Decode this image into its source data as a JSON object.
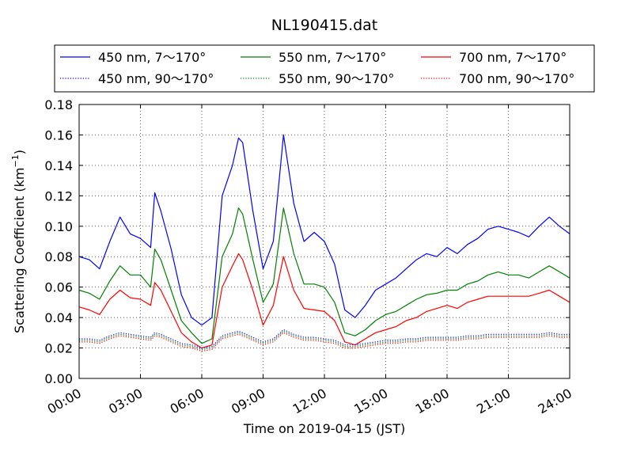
{
  "chart_data": {
    "type": "line",
    "title": "NL190415.dat",
    "xlabel": "Time on 2019-04-15 (JST)",
    "ylabel_main": "Scattering Coefficient (km",
    "ylabel_exp": "−1",
    "ylabel_close": ")",
    "xlim": [
      0,
      24
    ],
    "ylim": [
      0,
      0.18
    ],
    "x_ticks": [
      0,
      3,
      6,
      9,
      12,
      15,
      18,
      21,
      24
    ],
    "x_tick_labels": [
      "00:00",
      "03:00",
      "06:00",
      "09:00",
      "12:00",
      "15:00",
      "18:00",
      "21:00",
      "24:00"
    ],
    "y_ticks": [
      0,
      0.02,
      0.04,
      0.06,
      0.08,
      0.1,
      0.12,
      0.14,
      0.16,
      0.18
    ],
    "y_tick_labels": [
      "0.00",
      "0.02",
      "0.04",
      "0.06",
      "0.08",
      "0.10",
      "0.12",
      "0.14",
      "0.16",
      "0.18"
    ],
    "grid": true,
    "legend_position": "top",
    "x": [
      0,
      0.5,
      1,
      1.5,
      2,
      2.5,
      3,
      3.5,
      3.7,
      4,
      4.5,
      5,
      5.5,
      6,
      6.5,
      7,
      7.5,
      7.8,
      8,
      8.5,
      9,
      9.5,
      10,
      10.5,
      11,
      11.5,
      12,
      12.5,
      13,
      13.5,
      14,
      14.5,
      15,
      15.5,
      16,
      16.5,
      17,
      17.5,
      18,
      18.5,
      19,
      19.5,
      20,
      20.5,
      21,
      21.5,
      22,
      22.5,
      23,
      23.5,
      24
    ],
    "series": [
      {
        "name": "450 nm, 7～170°",
        "color": "#0000ff",
        "style": "solid",
        "values": [
          0.08,
          0.078,
          0.072,
          0.09,
          0.106,
          0.095,
          0.092,
          0.086,
          0.122,
          0.11,
          0.085,
          0.055,
          0.04,
          0.035,
          0.04,
          0.12,
          0.14,
          0.158,
          0.155,
          0.11,
          0.072,
          0.09,
          0.16,
          0.115,
          0.09,
          0.096,
          0.09,
          0.075,
          0.045,
          0.04,
          0.048,
          0.058,
          0.062,
          0.066,
          0.072,
          0.078,
          0.082,
          0.08,
          0.086,
          0.082,
          0.088,
          0.092,
          0.098,
          0.1,
          0.098,
          0.096,
          0.093,
          0.1,
          0.106,
          0.1,
          0.095
        ]
      },
      {
        "name": "550 nm, 7～170°",
        "color": "#008000",
        "style": "solid",
        "values": [
          0.058,
          0.056,
          0.052,
          0.064,
          0.074,
          0.068,
          0.068,
          0.06,
          0.085,
          0.078,
          0.058,
          0.038,
          0.03,
          0.023,
          0.026,
          0.08,
          0.095,
          0.112,
          0.108,
          0.078,
          0.05,
          0.062,
          0.112,
          0.082,
          0.062,
          0.062,
          0.06,
          0.05,
          0.03,
          0.028,
          0.032,
          0.038,
          0.042,
          0.044,
          0.048,
          0.052,
          0.055,
          0.056,
          0.058,
          0.058,
          0.062,
          0.064,
          0.068,
          0.07,
          0.068,
          0.068,
          0.066,
          0.07,
          0.074,
          0.07,
          0.066
        ]
      },
      {
        "name": "700 nm, 7～170°",
        "color": "#ff0000",
        "style": "solid",
        "values": [
          0.047,
          0.045,
          0.042,
          0.052,
          0.058,
          0.053,
          0.052,
          0.048,
          0.063,
          0.058,
          0.044,
          0.03,
          0.024,
          0.02,
          0.022,
          0.06,
          0.074,
          0.082,
          0.078,
          0.058,
          0.035,
          0.048,
          0.08,
          0.058,
          0.046,
          0.045,
          0.044,
          0.038,
          0.024,
          0.022,
          0.026,
          0.03,
          0.032,
          0.034,
          0.038,
          0.04,
          0.044,
          0.046,
          0.048,
          0.046,
          0.05,
          0.052,
          0.054,
          0.054,
          0.054,
          0.054,
          0.054,
          0.056,
          0.058,
          0.054,
          0.05
        ]
      },
      {
        "name": "450 nm, 90～170°",
        "color": "#0000ff",
        "style": "dotted",
        "values": [
          0.026,
          0.026,
          0.025,
          0.028,
          0.03,
          0.029,
          0.028,
          0.027,
          0.03,
          0.029,
          0.026,
          0.023,
          0.022,
          0.02,
          0.021,
          0.028,
          0.03,
          0.031,
          0.03,
          0.027,
          0.024,
          0.026,
          0.032,
          0.029,
          0.027,
          0.027,
          0.026,
          0.025,
          0.022,
          0.022,
          0.023,
          0.024,
          0.025,
          0.025,
          0.026,
          0.026,
          0.027,
          0.027,
          0.027,
          0.027,
          0.028,
          0.028,
          0.029,
          0.029,
          0.029,
          0.029,
          0.029,
          0.029,
          0.03,
          0.029,
          0.029
        ]
      },
      {
        "name": "550 nm, 90～170°",
        "color": "#008000",
        "style": "dotted",
        "values": [
          0.025,
          0.025,
          0.024,
          0.027,
          0.029,
          0.028,
          0.027,
          0.026,
          0.029,
          0.028,
          0.025,
          0.022,
          0.021,
          0.019,
          0.02,
          0.027,
          0.029,
          0.03,
          0.029,
          0.026,
          0.023,
          0.025,
          0.031,
          0.028,
          0.026,
          0.026,
          0.025,
          0.024,
          0.021,
          0.021,
          0.022,
          0.023,
          0.024,
          0.024,
          0.025,
          0.025,
          0.026,
          0.026,
          0.026,
          0.026,
          0.027,
          0.027,
          0.028,
          0.028,
          0.028,
          0.028,
          0.028,
          0.028,
          0.029,
          0.028,
          0.028
        ]
      },
      {
        "name": "700 nm, 90～170°",
        "color": "#ff0000",
        "style": "dotted",
        "values": [
          0.024,
          0.024,
          0.023,
          0.026,
          0.028,
          0.027,
          0.026,
          0.025,
          0.028,
          0.027,
          0.024,
          0.021,
          0.02,
          0.018,
          0.019,
          0.026,
          0.028,
          0.029,
          0.028,
          0.025,
          0.022,
          0.024,
          0.03,
          0.027,
          0.025,
          0.025,
          0.024,
          0.023,
          0.02,
          0.02,
          0.021,
          0.022,
          0.023,
          0.023,
          0.024,
          0.024,
          0.025,
          0.025,
          0.025,
          0.025,
          0.026,
          0.026,
          0.027,
          0.027,
          0.027,
          0.027,
          0.027,
          0.027,
          0.028,
          0.027,
          0.027
        ]
      }
    ]
  }
}
